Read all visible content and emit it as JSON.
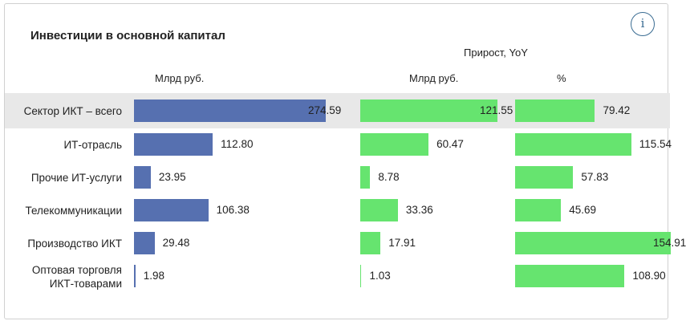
{
  "chart_data": {
    "type": "bar",
    "title": "Инвестиции в основной капитал",
    "info_icon": "info-icon",
    "group_header": "Прирост, YoY",
    "columns": [
      {
        "key": "value",
        "header": "Млрд руб.",
        "max": 274.59,
        "color": "#5670b0"
      },
      {
        "key": "growth_abs",
        "header": "Млрд руб.",
        "max": 121.55,
        "color": "#66e46f"
      },
      {
        "key": "growth_pct",
        "header": "%",
        "max": 154.91,
        "color": "#66e46f"
      }
    ],
    "highlight_row": 0,
    "rows": [
      {
        "category": "Сектор ИКТ – всего",
        "value": 274.59,
        "value_label": "274.59",
        "growth_abs": 121.55,
        "growth_abs_label": "121.55",
        "growth_pct": 79.42,
        "growth_pct_label": "79.42"
      },
      {
        "category": "ИТ-отрасль",
        "value": 112.8,
        "value_label": "112.80",
        "growth_abs": 60.47,
        "growth_abs_label": "60.47",
        "growth_pct": 115.54,
        "growth_pct_label": "115.54"
      },
      {
        "category": "Прочие ИТ-услуги",
        "value": 23.95,
        "value_label": "23.95",
        "growth_abs": 8.78,
        "growth_abs_label": "8.78",
        "growth_pct": 57.83,
        "growth_pct_label": "57.83"
      },
      {
        "category": "Телекоммуникации",
        "value": 106.38,
        "value_label": "106.38",
        "growth_abs": 33.36,
        "growth_abs_label": "33.36",
        "growth_pct": 45.69,
        "growth_pct_label": "45.69"
      },
      {
        "category": "Производство ИКТ",
        "value": 29.48,
        "value_label": "29.48",
        "growth_abs": 17.91,
        "growth_abs_label": "17.91",
        "growth_pct": 154.91,
        "growth_pct_label": "154.91"
      },
      {
        "category": "Оптовая торговля ИКТ-товарами",
        "value": 1.98,
        "value_label": "1.98",
        "growth_abs": 1.03,
        "growth_abs_label": "1.03",
        "growth_pct": 108.9,
        "growth_pct_label": "108.90"
      }
    ]
  }
}
